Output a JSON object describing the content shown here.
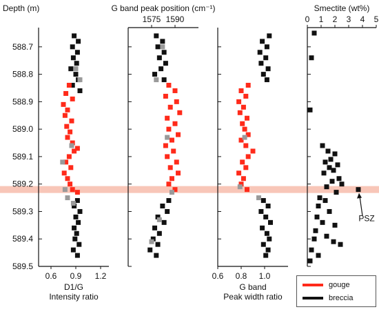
{
  "colors": {
    "gouge": "#ff2a1a",
    "breccia": "#111111",
    "transition": "#9a9a9a",
    "psz_band": "#f8c6b8"
  },
  "chart_data": {
    "type": "scatter",
    "shared_y": {
      "label": "Depth (m)",
      "ylim": [
        588.63,
        589.5
      ],
      "ticks": [
        "588.7",
        "588.8",
        "588.9",
        "589.0",
        "589.1",
        "589.2",
        "589.3",
        "589.4",
        "589.5"
      ],
      "inverted": true
    },
    "psz_depth": 589.22,
    "annotations": [
      {
        "text": "PSZ",
        "x": 3.7,
        "y": 589.22
      }
    ],
    "legend": {
      "position": "bottom-right",
      "entries": [
        {
          "name": "gouge",
          "color": "#ff2a1a"
        },
        {
          "name": "breccia",
          "color": "#111111"
        }
      ]
    },
    "panels": [
      {
        "name": "D1/G",
        "xlabel_lines": [
          "D1/G",
          "Intensity ratio"
        ],
        "xlim": [
          0.45,
          1.3
        ],
        "xticks": [
          "0.6",
          "0.9",
          "1.2"
        ],
        "axis_position": "bottom",
        "series": [
          {
            "name": "breccia",
            "points": [
              [
                0.88,
                588.66
              ],
              [
                0.93,
                588.68
              ],
              [
                0.86,
                588.7
              ],
              [
                0.92,
                588.72
              ],
              [
                0.87,
                588.74
              ],
              [
                0.91,
                588.76
              ],
              [
                0.84,
                588.78
              ],
              [
                0.9,
                588.8
              ],
              [
                0.93,
                588.82
              ],
              [
                0.86,
                588.84
              ],
              [
                0.95,
                588.86
              ],
              [
                0.92,
                589.26
              ],
              [
                0.88,
                589.28
              ],
              [
                0.95,
                589.3
              ],
              [
                0.9,
                589.32
              ],
              [
                0.93,
                589.34
              ],
              [
                0.88,
                589.36
              ],
              [
                0.91,
                589.38
              ],
              [
                0.89,
                589.4
              ],
              [
                0.94,
                589.42
              ],
              [
                0.87,
                589.44
              ],
              [
                0.92,
                589.46
              ]
            ]
          },
          {
            "name": "gouge",
            "points": [
              [
                0.82,
                588.84
              ],
              [
                0.78,
                588.87
              ],
              [
                0.86,
                588.89
              ],
              [
                0.75,
                588.91
              ],
              [
                0.8,
                588.93
              ],
              [
                0.77,
                588.95
              ],
              [
                0.85,
                588.97
              ],
              [
                0.79,
                588.99
              ],
              [
                0.83,
                589.01
              ],
              [
                0.8,
                589.03
              ],
              [
                0.86,
                589.05
              ],
              [
                0.92,
                589.07
              ],
              [
                0.88,
                589.08
              ],
              [
                0.82,
                589.1
              ],
              [
                0.78,
                589.12
              ],
              [
                0.84,
                589.14
              ],
              [
                0.76,
                589.16
              ],
              [
                0.8,
                589.18
              ],
              [
                0.83,
                589.2
              ],
              [
                0.86,
                589.22
              ],
              [
                0.92,
                589.23
              ]
            ]
          },
          {
            "name": "transition",
            "points": [
              [
                0.9,
                588.78
              ],
              [
                0.95,
                588.82
              ],
              [
                0.85,
                589.06
              ],
              [
                0.74,
                589.12
              ],
              [
                0.77,
                589.22
              ],
              [
                0.8,
                589.25
              ],
              [
                0.87,
                589.27
              ]
            ]
          }
        ]
      },
      {
        "name": "G band peak position",
        "xlabel_lines": [
          "G band peak position (cm⁻¹)"
        ],
        "xlim": [
          1560,
          1605
        ],
        "xticks": [
          "1575",
          "1590"
        ],
        "axis_position": "top",
        "series": [
          {
            "name": "breccia",
            "points": [
              [
                1578,
                588.66
              ],
              [
                1582,
                588.68
              ],
              [
                1579,
                588.7
              ],
              [
                1583,
                588.72
              ],
              [
                1580,
                588.74
              ],
              [
                1584,
                588.76
              ],
              [
                1581,
                588.78
              ],
              [
                1577,
                588.8
              ],
              [
                1583,
                588.82
              ],
              [
                1586,
                589.26
              ],
              [
                1582,
                589.28
              ],
              [
                1585,
                589.3
              ],
              [
                1579,
                589.32
              ],
              [
                1583,
                589.34
              ],
              [
                1577,
                589.36
              ],
              [
                1580,
                589.38
              ],
              [
                1576,
                589.4
              ],
              [
                1579,
                589.42
              ],
              [
                1574,
                589.44
              ],
              [
                1578,
                589.46
              ]
            ]
          },
          {
            "name": "gouge",
            "points": [
              [
                1586,
                588.84
              ],
              [
                1590,
                588.86
              ],
              [
                1584,
                588.88
              ],
              [
                1591,
                588.9
              ],
              [
                1587,
                588.92
              ],
              [
                1593,
                588.94
              ],
              [
                1585,
                588.96
              ],
              [
                1590,
                588.98
              ],
              [
                1586,
                589.0
              ],
              [
                1592,
                589.02
              ],
              [
                1588,
                589.04
              ],
              [
                1584,
                589.06
              ],
              [
                1589,
                589.08
              ],
              [
                1585,
                589.1
              ],
              [
                1591,
                589.12
              ],
              [
                1587,
                589.14
              ],
              [
                1592,
                589.16
              ],
              [
                1588,
                589.18
              ],
              [
                1586,
                589.2
              ],
              [
                1590,
                589.22
              ]
            ]
          },
          {
            "name": "transition",
            "points": [
              [
                1582,
                588.7
              ],
              [
                1578,
                588.82
              ],
              [
                1585,
                589.03
              ],
              [
                1588,
                589.23
              ],
              [
                1580,
                589.33
              ],
              [
                1575,
                589.41
              ]
            ]
          }
        ]
      },
      {
        "name": "G band peak width",
        "xlabel_lines": [
          "G band",
          "Peak width ratio"
        ],
        "xlim": [
          0.6,
          1.2
        ],
        "xticks": [
          "0.6",
          "0.8",
          "1.0"
        ],
        "axis_position": "bottom",
        "series": [
          {
            "name": "breccia",
            "points": [
              [
                1.04,
                588.66
              ],
              [
                0.98,
                588.68
              ],
              [
                1.02,
                588.7
              ],
              [
                0.96,
                588.72
              ],
              [
                1.01,
                588.74
              ],
              [
                0.97,
                588.76
              ],
              [
                1.03,
                588.78
              ],
              [
                0.99,
                588.8
              ],
              [
                1.02,
                588.82
              ],
              [
                0.99,
                589.26
              ],
              [
                1.03,
                589.28
              ],
              [
                0.97,
                589.3
              ],
              [
                1.01,
                589.32
              ],
              [
                1.05,
                589.34
              ],
              [
                0.98,
                589.36
              ],
              [
                1.02,
                589.38
              ],
              [
                1.04,
                589.4
              ],
              [
                0.99,
                589.42
              ],
              [
                1.03,
                589.44
              ],
              [
                1.01,
                589.46
              ]
            ]
          },
          {
            "name": "gouge",
            "points": [
              [
                0.86,
                588.84
              ],
              [
                0.8,
                588.86
              ],
              [
                0.84,
                588.88
              ],
              [
                0.78,
                588.9
              ],
              [
                0.82,
                588.92
              ],
              [
                0.79,
                588.94
              ],
              [
                0.85,
                588.96
              ],
              [
                0.81,
                588.98
              ],
              [
                0.83,
                589.0
              ],
              [
                0.86,
                589.02
              ],
              [
                0.8,
                589.04
              ],
              [
                0.84,
                589.06
              ],
              [
                0.9,
                589.08
              ],
              [
                0.86,
                589.1
              ],
              [
                0.81,
                589.12
              ],
              [
                0.84,
                589.14
              ],
              [
                0.78,
                589.16
              ],
              [
                0.82,
                589.18
              ],
              [
                0.8,
                589.2
              ],
              [
                0.85,
                589.22
              ]
            ]
          },
          {
            "name": "transition",
            "points": [
              [
                0.83,
                589.03
              ],
              [
                0.79,
                589.21
              ],
              [
                0.95,
                589.25
              ]
            ]
          }
        ]
      },
      {
        "name": "Smectite",
        "xlabel_lines": [
          "Smectite (wt%)"
        ],
        "xlim": [
          0,
          5
        ],
        "xticks": [
          "0",
          "1",
          "2",
          "3",
          "4",
          "5"
        ],
        "axis_position": "top",
        "series": [
          {
            "name": "breccia",
            "points": [
              [
                0.5,
                588.65
              ],
              [
                0.3,
                588.74
              ],
              [
                0.2,
                588.93
              ],
              [
                1.1,
                589.06
              ],
              [
                1.5,
                589.08
              ],
              [
                2.0,
                589.09
              ],
              [
                1.7,
                589.11
              ],
              [
                1.3,
                589.12
              ],
              [
                2.2,
                589.13
              ],
              [
                1.6,
                589.14
              ],
              [
                1.9,
                589.15
              ],
              [
                1.2,
                589.16
              ],
              [
                2.3,
                589.18
              ],
              [
                1.8,
                589.19
              ],
              [
                2.5,
                589.2
              ],
              [
                1.4,
                589.21
              ],
              [
                3.7,
                589.22
              ],
              [
                2.1,
                589.23
              ],
              [
                0.9,
                589.25
              ],
              [
                1.3,
                589.26
              ],
              [
                0.8,
                589.28
              ],
              [
                1.6,
                589.3
              ],
              [
                0.7,
                589.32
              ],
              [
                1.1,
                589.34
              ],
              [
                2.0,
                589.35
              ],
              [
                0.6,
                589.37
              ],
              [
                1.4,
                589.39
              ],
              [
                0.5,
                589.4
              ],
              [
                1.9,
                589.41
              ],
              [
                2.4,
                589.42
              ],
              [
                0.3,
                589.44
              ],
              [
                0.8,
                589.46
              ],
              [
                0.2,
                589.48
              ]
            ]
          }
        ]
      }
    ]
  }
}
